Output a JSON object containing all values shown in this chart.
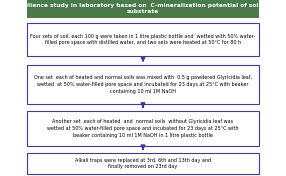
{
  "title": "Soil resilience study in laboratory based on  C-mineralization potential of soil  under substrate",
  "title_bg": "#4a7a4a",
  "title_fg": "white",
  "box_bg": "white",
  "box_border": "#3a3aaa",
  "arrow_color": "#3a3aaa",
  "boxes": [
    "Four sets of soil, each 100 g were taken in 1 litre plastic bottle and  wetted with 50% water-\nfilled pore space with distilled water, and two sets were heated at 50°C for 80 h",
    "One set  each of heated and normal soils was mixed with  0.5 g powdered Glyricidia leaf,\nwetted  at 50% water-filled pore space and incubated for 23 days at 25°C with beaker\ncontaining 10 ml 1M NaOH",
    "Another set  each of heated  and  normal soils  without Glyricidia leaf was\nwetted at 50% water-filled pore space and incubated for 23 days at 25°C with\nbeaker containing 10 ml 1M NaOH in 1 litre plastic bottle",
    "Alkali traps were replaced at 3rd, 6th and 13th day and\nfinally removed on 23rd day"
  ],
  "figsize": [
    2.86,
    1.76
  ],
  "dpi": 100
}
